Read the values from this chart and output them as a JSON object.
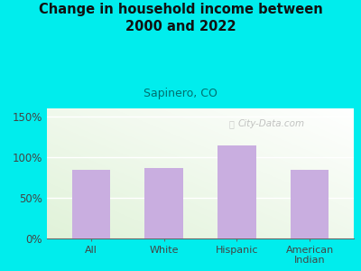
{
  "title": "Change in household income between\n2000 and 2022",
  "subtitle": "Sapinero, CO",
  "categories": [
    "All",
    "White",
    "Hispanic",
    "American\nIndian"
  ],
  "values": [
    85,
    87,
    115,
    85
  ],
  "bar_color": "#c9aee0",
  "background_color": "#00eded",
  "ylabel_color": "#444444",
  "subtitle_color": "#007070",
  "title_color": "#111111",
  "yticks": [
    0,
    50,
    100,
    150
  ],
  "ytick_labels": [
    "0%",
    "50%",
    "100%",
    "150%"
  ],
  "ylim": [
    0,
    160
  ],
  "watermark": "City-Data.com",
  "watermark_color": "#aaaaaa"
}
